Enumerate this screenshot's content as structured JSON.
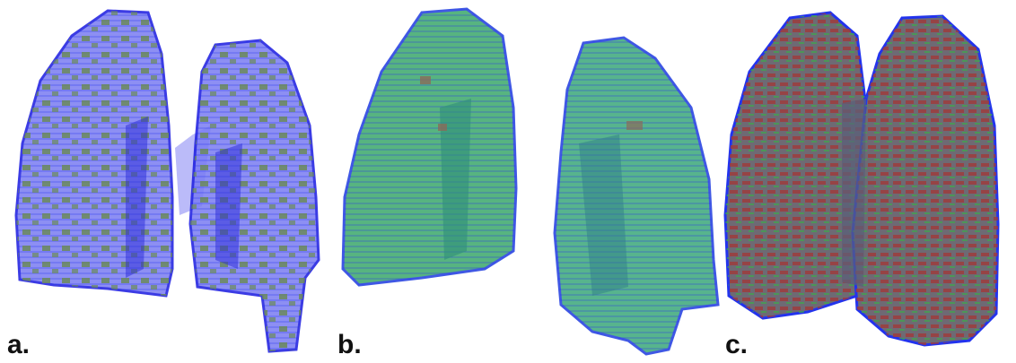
{
  "panels": [
    {
      "label": "a."
    },
    {
      "label": "b."
    },
    {
      "label": "c."
    }
  ]
}
